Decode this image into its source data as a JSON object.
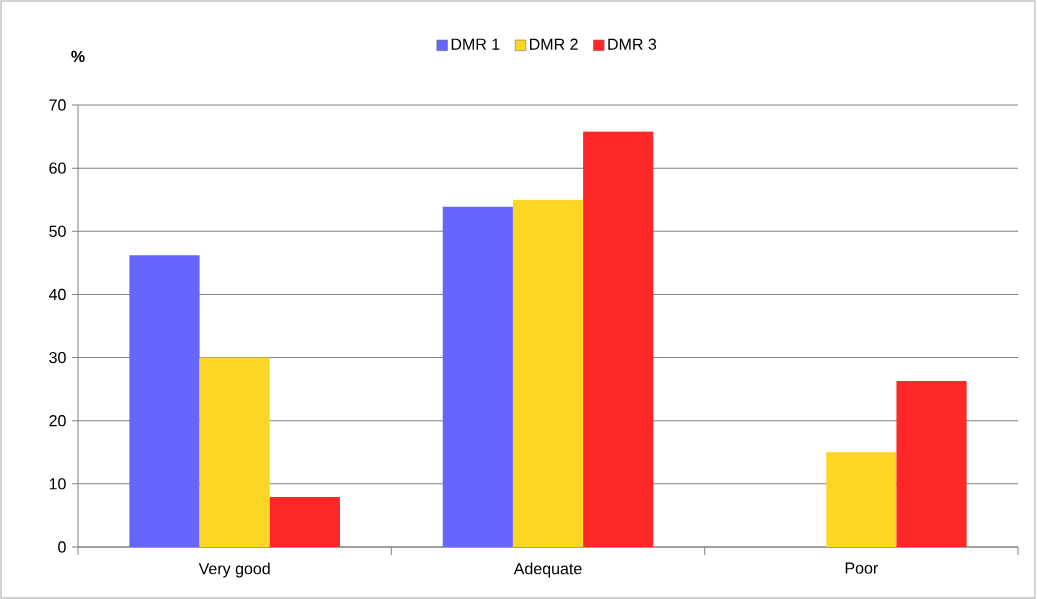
{
  "chart_data": {
    "type": "bar",
    "ylabel": "%",
    "categories": [
      "Very good",
      "Adequate",
      "Poor"
    ],
    "series": [
      {
        "name": "DMR 1",
        "color": "#6666ff",
        "values": [
          46.2,
          53.9,
          0
        ]
      },
      {
        "name": "DMR 2",
        "color": "#fdd525",
        "values": [
          30,
          55,
          15
        ]
      },
      {
        "name": "DMR 3",
        "color": "#ff2828",
        "values": [
          7.9,
          65.8,
          26.3
        ]
      }
    ],
    "ylim": [
      0,
      70
    ],
    "yticks": [
      0,
      10,
      20,
      30,
      40,
      50,
      60,
      70
    ],
    "grid": "y",
    "legend": "top"
  }
}
